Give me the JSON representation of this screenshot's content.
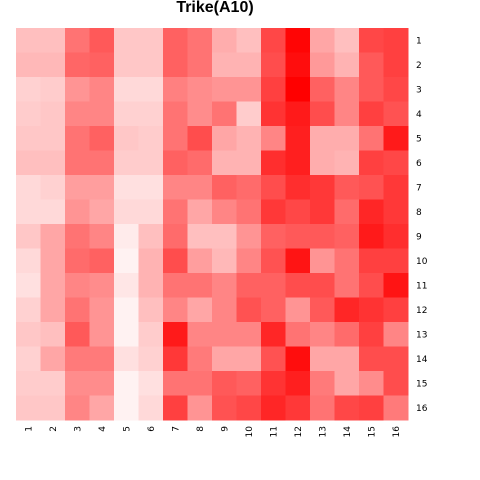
{
  "chart_data": {
    "type": "heatmap",
    "title": "Trike(A10)",
    "x_labels": [
      "1",
      "2",
      "3",
      "4",
      "5",
      "6",
      "7",
      "8",
      "9",
      "10",
      "11",
      "12",
      "13",
      "14",
      "15",
      "16"
    ],
    "y_labels": [
      "1",
      "2",
      "3",
      "4",
      "5",
      "6",
      "7",
      "8",
      "9",
      "10",
      "11",
      "12",
      "13",
      "14",
      "15",
      "16"
    ],
    "color_low": "#ffffff",
    "color_high": "#ff0000",
    "value_range": [
      0,
      1
    ],
    "values": [
      [
        0.25,
        0.25,
        0.55,
        0.65,
        0.22,
        0.22,
        0.62,
        0.55,
        0.32,
        0.25,
        0.72,
        0.98,
        0.35,
        0.25,
        0.72,
        0.75
      ],
      [
        0.28,
        0.28,
        0.6,
        0.62,
        0.22,
        0.22,
        0.62,
        0.55,
        0.3,
        0.3,
        0.7,
        0.95,
        0.4,
        0.3,
        0.65,
        0.75
      ],
      [
        0.18,
        0.2,
        0.42,
        0.48,
        0.15,
        0.15,
        0.5,
        0.45,
        0.42,
        0.42,
        0.75,
        1.0,
        0.62,
        0.48,
        0.65,
        0.72
      ],
      [
        0.2,
        0.22,
        0.48,
        0.48,
        0.18,
        0.18,
        0.55,
        0.45,
        0.55,
        0.2,
        0.8,
        0.9,
        0.7,
        0.48,
        0.75,
        0.68
      ],
      [
        0.22,
        0.22,
        0.55,
        0.62,
        0.22,
        0.2,
        0.55,
        0.7,
        0.35,
        0.3,
        0.48,
        0.88,
        0.32,
        0.32,
        0.55,
        0.9
      ],
      [
        0.25,
        0.25,
        0.55,
        0.55,
        0.2,
        0.2,
        0.62,
        0.58,
        0.3,
        0.3,
        0.82,
        0.88,
        0.32,
        0.3,
        0.75,
        0.72
      ],
      [
        0.15,
        0.18,
        0.38,
        0.38,
        0.12,
        0.12,
        0.48,
        0.48,
        0.62,
        0.58,
        0.7,
        0.82,
        0.78,
        0.65,
        0.68,
        0.78
      ],
      [
        0.15,
        0.15,
        0.42,
        0.35,
        0.15,
        0.15,
        0.55,
        0.35,
        0.48,
        0.55,
        0.78,
        0.72,
        0.78,
        0.58,
        0.85,
        0.78
      ],
      [
        0.22,
        0.35,
        0.55,
        0.48,
        0.08,
        0.25,
        0.58,
        0.25,
        0.25,
        0.42,
        0.62,
        0.65,
        0.65,
        0.62,
        0.9,
        0.82
      ],
      [
        0.15,
        0.35,
        0.58,
        0.62,
        0.05,
        0.3,
        0.7,
        0.38,
        0.28,
        0.48,
        0.68,
        0.92,
        0.42,
        0.55,
        0.75,
        0.75
      ],
      [
        0.12,
        0.35,
        0.48,
        0.45,
        0.1,
        0.3,
        0.55,
        0.55,
        0.48,
        0.62,
        0.62,
        0.7,
        0.7,
        0.55,
        0.7,
        0.92
      ],
      [
        0.18,
        0.35,
        0.55,
        0.42,
        0.05,
        0.25,
        0.48,
        0.35,
        0.48,
        0.68,
        0.62,
        0.42,
        0.65,
        0.85,
        0.8,
        0.75
      ],
      [
        0.22,
        0.25,
        0.65,
        0.42,
        0.05,
        0.2,
        0.9,
        0.48,
        0.48,
        0.48,
        0.85,
        0.55,
        0.48,
        0.58,
        0.75,
        0.48
      ],
      [
        0.18,
        0.35,
        0.52,
        0.52,
        0.12,
        0.18,
        0.78,
        0.52,
        0.35,
        0.35,
        0.68,
        0.95,
        0.35,
        0.35,
        0.7,
        0.7
      ],
      [
        0.2,
        0.2,
        0.45,
        0.45,
        0.05,
        0.12,
        0.55,
        0.55,
        0.65,
        0.62,
        0.8,
        0.88,
        0.52,
        0.35,
        0.45,
        0.7
      ],
      [
        0.22,
        0.22,
        0.48,
        0.35,
        0.05,
        0.15,
        0.75,
        0.42,
        0.68,
        0.72,
        0.85,
        0.78,
        0.55,
        0.72,
        0.75,
        0.52
      ]
    ]
  }
}
